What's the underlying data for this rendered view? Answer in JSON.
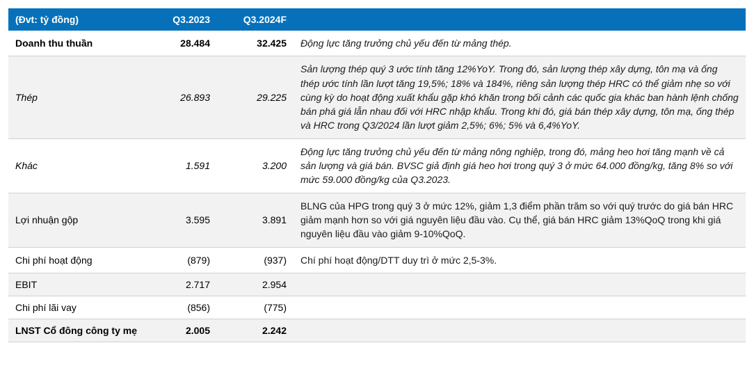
{
  "header": {
    "unit": "(Đvt: tỷ đồng)",
    "col_q1": "Q3.2023",
    "col_q2": "Q3.2024F"
  },
  "rows": [
    {
      "label": "Doanh thu thuần",
      "q1": "28.484",
      "q2": "32.425",
      "desc": "Động lực tăng trưởng chủ yếu đến từ mảng thép.",
      "bold": true,
      "italic_label": false,
      "alt": false,
      "desc_italic": true
    },
    {
      "label": "Thép",
      "q1": "26.893",
      "q2": "29.225",
      "desc": "Sản lượng thép quý 3 ước tính tăng 12%YoY. Trong đó, sản lượng thép xây dựng, tôn mạ và ống thép ước tính lần lượt tăng 19,5%; 18% và 184%, riêng sản lượng thép HRC có thể giảm nhẹ so với cùng kỳ do hoạt động xuất khẩu gặp khó khăn trong bối cảnh các quốc gia khác ban hành lệnh chống bán phá giá lẫn nhau đối với HRC nhập khẩu. Trong khi đó, giá bán thép xây dựng, tôn mạ, ống thép và HRC trong Q3/2024 lần lượt giảm 2,5%; 6%; 5% và 6,4%YoY.",
      "bold": false,
      "italic_label": true,
      "alt": true,
      "desc_italic": true
    },
    {
      "label": "Khác",
      "q1": "1.591",
      "q2": "3.200",
      "desc": "Động lực tăng trưởng chủ yếu đến từ mảng nông nghiệp, trong đó, mảng heo hơi tăng mạnh về cả sản lượng và giá bán. BVSC giả định giá heo hơi trong quý 3 ở mức 64.000 đồng/kg, tăng 8% so với mức 59.000 đồng/kg của Q3.2023.",
      "bold": false,
      "italic_label": true,
      "alt": false,
      "desc_italic": true
    },
    {
      "label": "Lợi nhuận gộp",
      "q1": "3.595",
      "q2": "3.891",
      "desc": "BLNG của HPG trong quý 3 ở mức 12%, giảm 1,3 điểm phần trăm so với quý trước do giá bán HRC giảm mạnh hơn so với giá nguyên liệu đầu vào. Cụ thể, giá bán HRC giảm 13%QoQ trong khi giá nguyên liệu đầu vào giảm 9-10%QoQ.",
      "bold": false,
      "italic_label": false,
      "alt": true,
      "desc_italic": false
    },
    {
      "label": "Chi phí hoạt động",
      "q1": "(879)",
      "q2": "(937)",
      "desc": "Chí phí hoạt động/DTT duy trì ở mức 2,5-3%.",
      "bold": false,
      "italic_label": false,
      "alt": false,
      "desc_italic": false
    },
    {
      "label": "EBIT",
      "q1": "2.717",
      "q2": "2.954",
      "desc": "",
      "bold": false,
      "italic_label": false,
      "alt": true,
      "desc_italic": false
    },
    {
      "label": "Chi phí lãi vay",
      "q1": "(856)",
      "q2": "(775)",
      "desc": "",
      "bold": false,
      "italic_label": false,
      "alt": false,
      "desc_italic": false
    },
    {
      "label": "LNST Cổ đông công ty mẹ",
      "q1": "2.005",
      "q2": "2.242",
      "desc": "",
      "bold": true,
      "italic_label": false,
      "alt": true,
      "desc_italic": false
    }
  ],
  "colors": {
    "header_bg": "#0671ba",
    "header_text": "#ffffff",
    "alt_row_bg": "#f2f2f2",
    "border": "#d0d0d0",
    "text": "#000000"
  }
}
